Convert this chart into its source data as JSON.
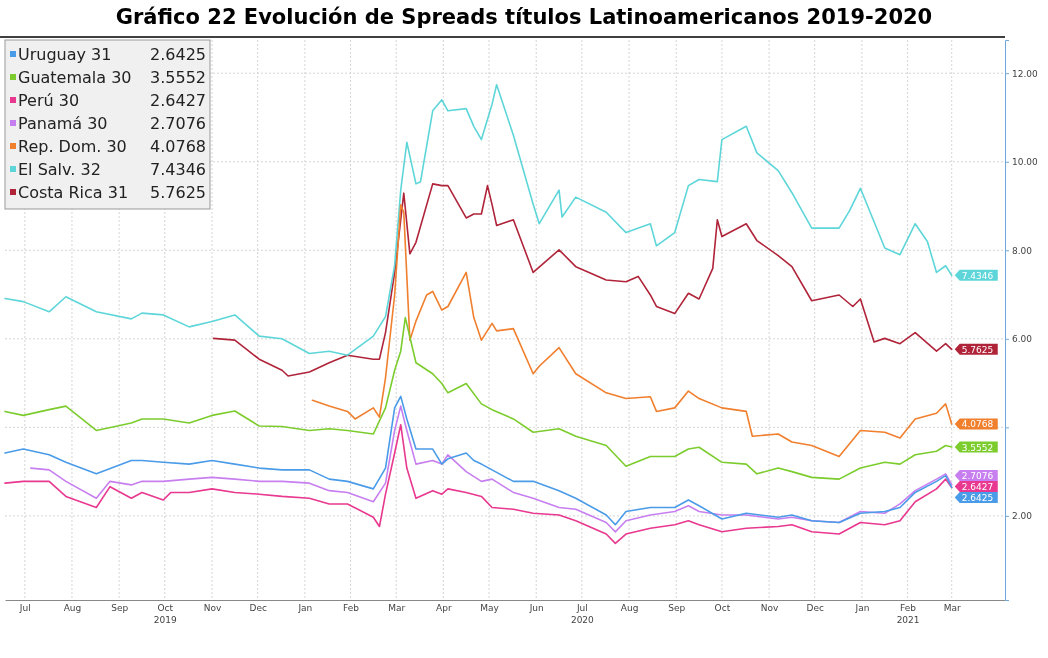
{
  "chart_data": {
    "type": "line",
    "title": "Gráfico 22 Evolución de Spreads títulos Latinoamericanos 2019-2020",
    "xlim": [
      "2019-07-03",
      "2021-04-20"
    ],
    "xticks": [
      {
        "value": "2019-07-16",
        "label": "Jul"
      },
      {
        "value": "2019-08-16",
        "label": "Aug"
      },
      {
        "value": "2019-09-16",
        "label": "Sep"
      },
      {
        "value": "2019-10-16",
        "label": "Oct\n2019"
      },
      {
        "value": "2019-11-16",
        "label": "Nov"
      },
      {
        "value": "2019-12-16",
        "label": "Dec"
      },
      {
        "value": "2020-01-16",
        "label": "Jan"
      },
      {
        "value": "2020-02-15",
        "label": "Feb"
      },
      {
        "value": "2020-03-16",
        "label": "Mar"
      },
      {
        "value": "2020-04-16",
        "label": "Apr"
      },
      {
        "value": "2020-05-16",
        "label": "May"
      },
      {
        "value": "2020-06-16",
        "label": "Jun"
      },
      {
        "value": "2020-07-16",
        "label": "Jul\n2020"
      },
      {
        "value": "2020-08-16",
        "label": "Aug"
      },
      {
        "value": "2020-09-16",
        "label": "Sep"
      },
      {
        "value": "2020-10-16",
        "label": "Oct"
      },
      {
        "value": "2020-11-16",
        "label": "Nov"
      },
      {
        "value": "2020-12-16",
        "label": "Dec"
      },
      {
        "value": "2021-01-16",
        "label": "Jan"
      },
      {
        "value": "2021-02-15",
        "label": "Feb\n2021"
      },
      {
        "value": "2021-03-16",
        "label": "Mar"
      }
    ],
    "ylim": [
      0.1,
      12.75
    ],
    "yticks": [
      {
        "value": 2,
        "label": "2.00"
      },
      {
        "value": 4,
        "label": null
      },
      {
        "value": 6,
        "label": "6.00"
      },
      {
        "value": 8,
        "label": "8.00"
      },
      {
        "value": 10,
        "label": "10.00"
      },
      {
        "value": 12,
        "label": "12.00"
      }
    ],
    "grid": true,
    "legend": "top left",
    "series": [
      {
        "name": "Uruguay 31",
        "color": "#4a9be8",
        "x": [
          "2019-07-03",
          "2019-07-15",
          "2019-08-01",
          "2019-08-12",
          "2019-09-01",
          "2019-09-24",
          "2019-10-01",
          "2019-10-15",
          "2019-11-01",
          "2019-11-16",
          "2019-12-01",
          "2019-12-17",
          "2020-01-01",
          "2020-01-19",
          "2020-02-01",
          "2020-02-13",
          "2020-03-01",
          "2020-03-09",
          "2020-03-15",
          "2020-03-19",
          "2020-03-23",
          "2020-03-29",
          "2020-04-09",
          "2020-04-15",
          "2020-04-19",
          "2020-05-01",
          "2020-05-06",
          "2020-05-11",
          "2020-05-18",
          "2020-06-01",
          "2020-06-14",
          "2020-07-01",
          "2020-07-12",
          "2020-08-01",
          "2020-08-07",
          "2020-08-14",
          "2020-08-30",
          "2020-09-15",
          "2020-09-24",
          "2020-10-01",
          "2020-10-16",
          "2020-11-01",
          "2020-11-22",
          "2020-12-01",
          "2020-12-14",
          "2021-01-01",
          "2021-01-15",
          "2021-01-31",
          "2021-02-10",
          "2021-02-20",
          "2021-03-06",
          "2021-03-12",
          "2021-03-16"
        ],
        "values": [
          3.42,
          3.51,
          3.38,
          3.21,
          2.95,
          3.25,
          3.25,
          3.21,
          3.17,
          3.25,
          3.17,
          3.08,
          3.04,
          3.04,
          2.83,
          2.78,
          2.61,
          3.08,
          4.44,
          4.7,
          4.19,
          3.51,
          3.51,
          3.17,
          3.29,
          3.42,
          3.25,
          3.17,
          3.04,
          2.78,
          2.78,
          2.57,
          2.4,
          2.02,
          1.8,
          2.1,
          2.19,
          2.19,
          2.36,
          2.23,
          1.93,
          2.06,
          1.97,
          2.02,
          1.89,
          1.85,
          2.06,
          2.1,
          2.19,
          2.53,
          2.78,
          2.91,
          2.6425
        ],
        "value_labels": [
          null,
          null,
          null,
          null,
          null,
          null,
          null,
          null,
          null,
          null,
          null,
          null,
          null,
          null,
          null,
          null,
          null,
          null,
          null,
          null,
          null,
          null,
          null,
          null,
          null,
          null,
          null,
          null,
          null,
          null,
          null,
          null,
          null,
          null,
          null,
          null,
          null,
          null,
          null,
          null,
          null,
          null,
          null,
          null,
          null,
          null,
          null,
          null,
          null,
          null,
          null,
          null,
          "2.6425"
        ]
      },
      {
        "name": "Guatemala 30",
        "color": "#7ccc2e",
        "x": [
          "2019-07-03",
          "2019-07-15",
          "2019-08-01",
          "2019-08-12",
          "2019-09-01",
          "2019-09-24",
          "2019-10-01",
          "2019-10-15",
          "2019-11-01",
          "2019-11-16",
          "2019-12-01",
          "2019-12-17",
          "2020-01-01",
          "2020-01-19",
          "2020-02-01",
          "2020-02-13",
          "2020-03-01",
          "2020-03-09",
          "2020-03-15",
          "2020-03-19",
          "2020-03-22",
          "2020-03-29",
          "2020-04-09",
          "2020-04-15",
          "2020-04-19",
          "2020-05-01",
          "2020-05-11",
          "2020-05-18",
          "2020-06-01",
          "2020-06-14",
          "2020-07-01",
          "2020-07-12",
          "2020-08-01",
          "2020-08-14",
          "2020-08-30",
          "2020-09-15",
          "2020-09-24",
          "2020-10-01",
          "2020-10-16",
          "2020-11-01",
          "2020-11-08",
          "2020-11-22",
          "2020-12-01",
          "2020-12-14",
          "2021-01-01",
          "2021-01-15",
          "2021-01-31",
          "2021-02-10",
          "2021-02-20",
          "2021-03-06",
          "2021-03-12",
          "2021-03-16"
        ],
        "values": [
          4.36,
          4.27,
          4.4,
          4.48,
          3.93,
          4.1,
          4.19,
          4.19,
          4.1,
          4.27,
          4.37,
          4.03,
          4.02,
          3.93,
          3.97,
          3.93,
          3.85,
          4.44,
          5.29,
          5.72,
          6.48,
          5.46,
          5.21,
          4.99,
          4.78,
          4.99,
          4.53,
          4.4,
          4.19,
          3.89,
          3.97,
          3.8,
          3.59,
          3.12,
          3.34,
          3.34,
          3.51,
          3.55,
          3.21,
          3.17,
          2.95,
          3.08,
          3.0,
          2.87,
          2.83,
          3.08,
          3.21,
          3.17,
          3.38,
          3.46,
          3.59,
          3.5552
        ],
        "value_labels": [
          null,
          null,
          null,
          null,
          null,
          null,
          null,
          null,
          null,
          null,
          null,
          null,
          null,
          null,
          null,
          null,
          null,
          null,
          null,
          null,
          null,
          null,
          null,
          null,
          null,
          null,
          null,
          null,
          null,
          null,
          null,
          null,
          null,
          null,
          null,
          null,
          null,
          null,
          null,
          null,
          null,
          null,
          null,
          null,
          null,
          null,
          null,
          null,
          null,
          null,
          null,
          "3.5552"
        ]
      },
      {
        "name": "Perú 30",
        "color": "#e8388f",
        "x": [
          "2019-07-03",
          "2019-07-15",
          "2019-08-01",
          "2019-08-12",
          "2019-09-01",
          "2019-09-10",
          "2019-09-24",
          "2019-10-01",
          "2019-10-15",
          "2019-10-20",
          "2019-11-01",
          "2019-11-16",
          "2019-12-01",
          "2019-12-17",
          "2020-01-01",
          "2020-01-19",
          "2020-02-01",
          "2020-02-13",
          "2020-03-01",
          "2020-03-05",
          "2020-03-09",
          "2020-03-15",
          "2020-03-19",
          "2020-03-23",
          "2020-03-29",
          "2020-04-09",
          "2020-04-15",
          "2020-04-19",
          "2020-05-01",
          "2020-05-11",
          "2020-05-18",
          "2020-06-01",
          "2020-06-14",
          "2020-07-01",
          "2020-07-12",
          "2020-08-01",
          "2020-08-07",
          "2020-08-14",
          "2020-08-30",
          "2020-09-15",
          "2020-09-24",
          "2020-10-01",
          "2020-10-16",
          "2020-11-01",
          "2020-11-22",
          "2020-12-01",
          "2020-12-14",
          "2021-01-01",
          "2021-01-15",
          "2021-01-31",
          "2021-02-10",
          "2021-02-20",
          "2021-03-06",
          "2021-03-12",
          "2021-03-16"
        ],
        "values": [
          2.74,
          2.78,
          2.78,
          2.44,
          2.19,
          2.66,
          2.4,
          2.53,
          2.36,
          2.53,
          2.53,
          2.61,
          2.53,
          2.49,
          2.44,
          2.4,
          2.27,
          2.27,
          1.97,
          1.76,
          2.49,
          3.42,
          4.06,
          3.08,
          2.4,
          2.57,
          2.49,
          2.61,
          2.53,
          2.44,
          2.19,
          2.15,
          2.06,
          2.02,
          1.89,
          1.59,
          1.38,
          1.59,
          1.72,
          1.8,
          1.89,
          1.8,
          1.64,
          1.72,
          1.76,
          1.8,
          1.64,
          1.59,
          1.85,
          1.8,
          1.89,
          2.32,
          2.61,
          2.83,
          2.6427
        ],
        "value_labels": [
          null,
          null,
          null,
          null,
          null,
          null,
          null,
          null,
          null,
          null,
          null,
          null,
          null,
          null,
          null,
          null,
          null,
          null,
          null,
          null,
          null,
          null,
          null,
          null,
          null,
          null,
          null,
          null,
          null,
          null,
          null,
          null,
          null,
          null,
          null,
          null,
          null,
          null,
          null,
          null,
          null,
          null,
          null,
          null,
          null,
          null,
          null,
          null,
          null,
          null,
          null,
          null,
          null,
          null,
          "2.6427"
        ]
      },
      {
        "name": "Panamá 30",
        "color": "#c77ff0",
        "x": [
          "2019-07-20",
          "2019-08-01",
          "2019-08-12",
          "2019-09-01",
          "2019-09-10",
          "2019-09-24",
          "2019-10-01",
          "2019-10-15",
          "2019-11-01",
          "2019-11-16",
          "2019-12-01",
          "2019-12-17",
          "2020-01-01",
          "2020-01-19",
          "2020-02-01",
          "2020-02-13",
          "2020-03-01",
          "2020-03-09",
          "2020-03-15",
          "2020-03-19",
          "2020-03-23",
          "2020-03-29",
          "2020-04-09",
          "2020-04-15",
          "2020-04-19",
          "2020-05-01",
          "2020-05-11",
          "2020-05-18",
          "2020-06-01",
          "2020-06-14",
          "2020-07-01",
          "2020-07-12",
          "2020-08-01",
          "2020-08-07",
          "2020-08-14",
          "2020-08-30",
          "2020-09-15",
          "2020-09-24",
          "2020-10-01",
          "2020-10-16",
          "2020-11-01",
          "2020-11-22",
          "2020-12-01",
          "2020-12-14",
          "2021-01-01",
          "2021-01-15",
          "2021-01-31",
          "2021-02-10",
          "2021-02-20",
          "2021-03-06",
          "2021-03-12",
          "2021-03-16"
        ],
        "values": [
          3.08,
          3.04,
          2.78,
          2.4,
          2.78,
          2.7,
          2.78,
          2.78,
          2.83,
          2.87,
          2.83,
          2.78,
          2.78,
          2.74,
          2.57,
          2.53,
          2.32,
          2.74,
          3.93,
          4.48,
          3.93,
          3.17,
          3.25,
          3.17,
          3.38,
          3.0,
          2.78,
          2.83,
          2.53,
          2.4,
          2.19,
          2.15,
          1.85,
          1.64,
          1.89,
          2.02,
          2.1,
          2.23,
          2.1,
          2.02,
          2.02,
          1.93,
          1.97,
          1.89,
          1.85,
          2.1,
          2.06,
          2.27,
          2.57,
          2.83,
          2.95,
          2.7076
        ],
        "value_labels": [
          null,
          null,
          null,
          null,
          null,
          null,
          null,
          null,
          null,
          null,
          null,
          null,
          null,
          null,
          null,
          null,
          null,
          null,
          null,
          null,
          null,
          null,
          null,
          null,
          null,
          null,
          null,
          null,
          null,
          null,
          null,
          null,
          null,
          null,
          null,
          null,
          null,
          null,
          null,
          null,
          null,
          null,
          null,
          null,
          null,
          null,
          null,
          null,
          null,
          null,
          null,
          "2.7076"
        ]
      },
      {
        "name": "Rep. Dom. 30",
        "color": "#f07f2e",
        "x": [
          "2020-01-21",
          "2020-02-01",
          "2020-02-13",
          "2020-02-18",
          "2020-03-01",
          "2020-03-05",
          "2020-03-09",
          "2020-03-15",
          "2020-03-19",
          "2020-03-21",
          "2020-03-23",
          "2020-03-25",
          "2020-03-29",
          "2020-04-05",
          "2020-04-09",
          "2020-04-15",
          "2020-04-19",
          "2020-05-01",
          "2020-05-06",
          "2020-05-11",
          "2020-05-18",
          "2020-05-21",
          "2020-06-01",
          "2020-06-14",
          "2020-06-18",
          "2020-07-01",
          "2020-07-12",
          "2020-08-01",
          "2020-08-14",
          "2020-08-30",
          "2020-09-03",
          "2020-09-15",
          "2020-09-24",
          "2020-10-01",
          "2020-10-16",
          "2020-11-01",
          "2020-11-05",
          "2020-11-22",
          "2020-12-01",
          "2020-12-14",
          "2021-01-01",
          "2021-01-15",
          "2021-01-31",
          "2021-02-10",
          "2021-02-20",
          "2021-03-06",
          "2021-03-12",
          "2021-03-16"
        ],
        "values": [
          4.61,
          4.48,
          4.36,
          4.19,
          4.44,
          4.23,
          5.12,
          6.99,
          9.03,
          8.86,
          7.41,
          5.97,
          6.4,
          6.99,
          7.07,
          6.65,
          6.73,
          7.5,
          6.48,
          5.97,
          6.35,
          6.18,
          6.23,
          5.21,
          5.38,
          5.8,
          5.21,
          4.78,
          4.65,
          4.69,
          4.36,
          4.44,
          4.82,
          4.65,
          4.44,
          4.36,
          3.8,
          3.85,
          3.67,
          3.59,
          3.34,
          3.93,
          3.89,
          3.76,
          4.19,
          4.32,
          4.53,
          4.0768
        ],
        "value_labels": [
          null,
          null,
          null,
          null,
          null,
          null,
          null,
          null,
          null,
          null,
          null,
          null,
          null,
          null,
          null,
          null,
          null,
          null,
          null,
          null,
          null,
          null,
          null,
          null,
          null,
          null,
          null,
          null,
          null,
          null,
          null,
          null,
          null,
          null,
          null,
          null,
          null,
          null,
          null,
          null,
          null,
          null,
          null,
          null,
          null,
          null,
          null,
          "4.0768"
        ]
      },
      {
        "name": "El Salv. 32",
        "color": "#5ed6d9",
        "x": [
          "2019-07-03",
          "2019-07-15",
          "2019-08-01",
          "2019-08-12",
          "2019-09-01",
          "2019-09-24",
          "2019-10-01",
          "2019-10-15",
          "2019-11-01",
          "2019-11-16",
          "2019-12-01",
          "2019-12-17",
          "2020-01-01",
          "2020-01-19",
          "2020-02-01",
          "2020-02-13",
          "2020-03-01",
          "2020-03-09",
          "2020-03-15",
          "2020-03-19",
          "2020-03-23",
          "2020-03-29",
          "2020-04-01",
          "2020-04-09",
          "2020-04-15",
          "2020-04-19",
          "2020-05-01",
          "2020-05-06",
          "2020-05-11",
          "2020-05-18",
          "2020-05-21",
          "2020-06-01",
          "2020-06-14",
          "2020-06-18",
          "2020-07-01",
          "2020-07-03",
          "2020-07-12",
          "2020-08-01",
          "2020-08-14",
          "2020-08-30",
          "2020-09-03",
          "2020-09-15",
          "2020-09-24",
          "2020-10-01",
          "2020-10-13",
          "2020-10-16",
          "2020-11-01",
          "2020-11-08",
          "2020-11-22",
          "2020-12-01",
          "2020-12-14",
          "2021-01-01",
          "2021-01-08",
          "2021-01-15",
          "2021-01-31",
          "2021-02-10",
          "2021-02-20",
          "2021-02-28",
          "2021-03-06",
          "2021-03-12",
          "2021-03-16"
        ],
        "values": [
          6.91,
          6.84,
          6.61,
          6.95,
          6.61,
          6.45,
          6.58,
          6.54,
          6.27,
          6.39,
          6.54,
          6.06,
          6.0,
          5.67,
          5.72,
          5.63,
          6.06,
          6.5,
          7.66,
          9.36,
          10.44,
          9.5,
          9.55,
          11.15,
          11.4,
          11.15,
          11.2,
          10.8,
          10.5,
          11.3,
          11.74,
          10.6,
          9.04,
          8.6,
          9.36,
          8.75,
          9.2,
          8.86,
          8.4,
          8.6,
          8.1,
          8.4,
          9.46,
          9.6,
          9.55,
          10.5,
          10.8,
          10.2,
          9.8,
          9.3,
          8.5,
          8.5,
          8.9,
          9.4,
          8.05,
          7.9,
          8.6,
          8.2,
          7.5,
          7.65,
          7.4346
        ],
        "value_labels": [
          null,
          null,
          null,
          null,
          null,
          null,
          null,
          null,
          null,
          null,
          null,
          null,
          null,
          null,
          null,
          null,
          null,
          null,
          null,
          null,
          null,
          null,
          null,
          null,
          null,
          null,
          null,
          null,
          null,
          null,
          null,
          null,
          null,
          null,
          null,
          null,
          null,
          null,
          null,
          null,
          null,
          null,
          null,
          null,
          null,
          null,
          null,
          null,
          null,
          null,
          null,
          null,
          null,
          null,
          null,
          null,
          null,
          null,
          null,
          null,
          "7.4346"
        ]
      },
      {
        "name": "Costa Rica 31",
        "color": "#b0243a",
        "x": [
          "2019-11-17",
          "2019-12-01",
          "2019-12-17",
          "2020-01-01",
          "2020-01-05",
          "2020-01-19",
          "2020-02-01",
          "2020-02-13",
          "2020-03-01",
          "2020-03-05",
          "2020-03-09",
          "2020-03-15",
          "2020-03-19",
          "2020-03-21",
          "2020-03-25",
          "2020-03-29",
          "2020-04-09",
          "2020-04-15",
          "2020-04-19",
          "2020-05-01",
          "2020-05-06",
          "2020-05-11",
          "2020-05-15",
          "2020-05-18",
          "2020-05-21",
          "2020-06-01",
          "2020-06-14",
          "2020-07-01",
          "2020-07-12",
          "2020-08-01",
          "2020-08-14",
          "2020-08-22",
          "2020-08-30",
          "2020-09-03",
          "2020-09-15",
          "2020-09-24",
          "2020-10-01",
          "2020-10-10",
          "2020-10-13",
          "2020-10-16",
          "2020-11-01",
          "2020-11-08",
          "2020-11-22",
          "2020-12-01",
          "2020-12-14",
          "2021-01-01",
          "2021-01-10",
          "2021-01-15",
          "2021-01-24",
          "2021-01-31",
          "2021-02-10",
          "2021-02-20",
          "2021-03-06",
          "2021-03-12",
          "2021-03-16"
        ],
        "values": [
          6.01,
          5.97,
          5.54,
          5.29,
          5.16,
          5.25,
          5.46,
          5.63,
          5.54,
          5.54,
          6.14,
          7.5,
          8.69,
          9.29,
          7.92,
          8.18,
          9.5,
          9.46,
          9.46,
          8.73,
          8.82,
          8.82,
          9.46,
          9.03,
          8.56,
          8.69,
          7.5,
          8.01,
          7.63,
          7.33,
          7.29,
          7.41,
          6.99,
          6.73,
          6.57,
          7.03,
          6.9,
          7.59,
          8.69,
          8.31,
          8.6,
          8.22,
          7.88,
          7.63,
          6.86,
          6.99,
          6.73,
          6.9,
          5.93,
          6.01,
          5.89,
          6.14,
          5.72,
          5.89,
          5.7625
        ],
        "value_labels": [
          null,
          null,
          null,
          null,
          null,
          null,
          null,
          null,
          null,
          null,
          null,
          null,
          null,
          null,
          null,
          null,
          null,
          null,
          null,
          null,
          null,
          null,
          null,
          null,
          null,
          null,
          null,
          null,
          null,
          null,
          null,
          null,
          null,
          null,
          null,
          null,
          null,
          null,
          null,
          null,
          null,
          null,
          null,
          null,
          null,
          null,
          null,
          null,
          null,
          null,
          null,
          null,
          null,
          null,
          "5.7625"
        ]
      }
    ]
  }
}
